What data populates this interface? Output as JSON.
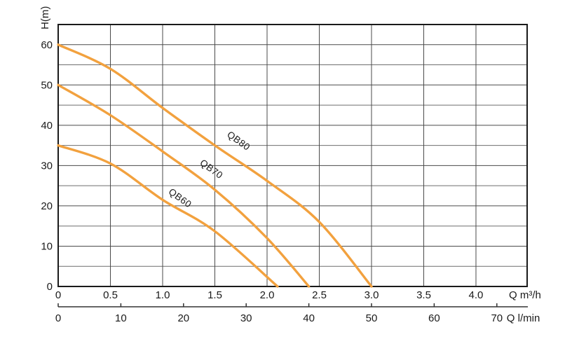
{
  "chart_data": {
    "type": "line",
    "title": "",
    "ylabel": "H(m)",
    "xlabel_primary": "Q m³/h",
    "xlabel_secondary": "Q l/min",
    "xlim": [
      0,
      4.49
    ],
    "ylim": [
      0,
      65
    ],
    "grid": true,
    "x_grid_step_m3h": 0.5,
    "y_grid_step_m": 5,
    "y_tick_values": [
      0,
      10,
      20,
      30,
      40,
      50,
      60
    ],
    "y_tick_labels": [
      "0",
      "10",
      "20",
      "30",
      "40",
      "50",
      "60"
    ],
    "x_tick_values_m3h": [
      0,
      0.5,
      1.0,
      1.5,
      2.0,
      2.5,
      3.0,
      3.5,
      4.0
    ],
    "x_tick_labels_m3h": [
      "0",
      "0.5",
      "1.0",
      "1.5",
      "2.0",
      "2.5",
      "3.0",
      "3.5",
      "4.0"
    ],
    "x_tick_values_lmin": [
      0,
      10,
      20,
      30,
      40,
      50,
      60,
      70
    ],
    "x_tick_labels_lmin": [
      "0",
      "10",
      "20",
      "30",
      "40",
      "50",
      "60",
      "70"
    ],
    "lmin_to_m3h_factor": 0.06,
    "curve_color": "#F2A13E",
    "axis_color": "#1a1a1a",
    "grid_color_horizontal": "#6e6e6e",
    "grid_color_vertical": "#4a4a4a",
    "secondary_axis_color": "#333333",
    "series": [
      {
        "name": "QB80",
        "label": "QB80",
        "points": [
          [
            0,
            60
          ],
          [
            0.5,
            54
          ],
          [
            1.0,
            44.3
          ],
          [
            1.5,
            35
          ],
          [
            2.0,
            26.2
          ],
          [
            2.5,
            16
          ],
          [
            3.0,
            0
          ]
        ],
        "shutoff_head_m": 60,
        "max_flow_m3h": 3.0,
        "label_pos": [
          1.71,
          35.5
        ],
        "label_angle_deg": 36
      },
      {
        "name": "QB70",
        "label": "QB70",
        "points": [
          [
            0,
            50
          ],
          [
            0.5,
            42.5
          ],
          [
            1.0,
            33.5
          ],
          [
            1.5,
            24
          ],
          [
            2.0,
            12
          ],
          [
            2.4,
            0
          ]
        ],
        "shutoff_head_m": 50,
        "max_flow_m3h": 2.4,
        "label_pos": [
          1.45,
          28.5
        ],
        "label_angle_deg": 36
      },
      {
        "name": "QB60",
        "label": "QB60",
        "points": [
          [
            0,
            35
          ],
          [
            0.5,
            30.5
          ],
          [
            1.0,
            21.5
          ],
          [
            1.5,
            13.7
          ],
          [
            2.1,
            0
          ]
        ],
        "shutoff_head_m": 35,
        "max_flow_m3h": 2.1,
        "label_pos": [
          1.15,
          21.3
        ],
        "label_angle_deg": 36
      }
    ]
  }
}
